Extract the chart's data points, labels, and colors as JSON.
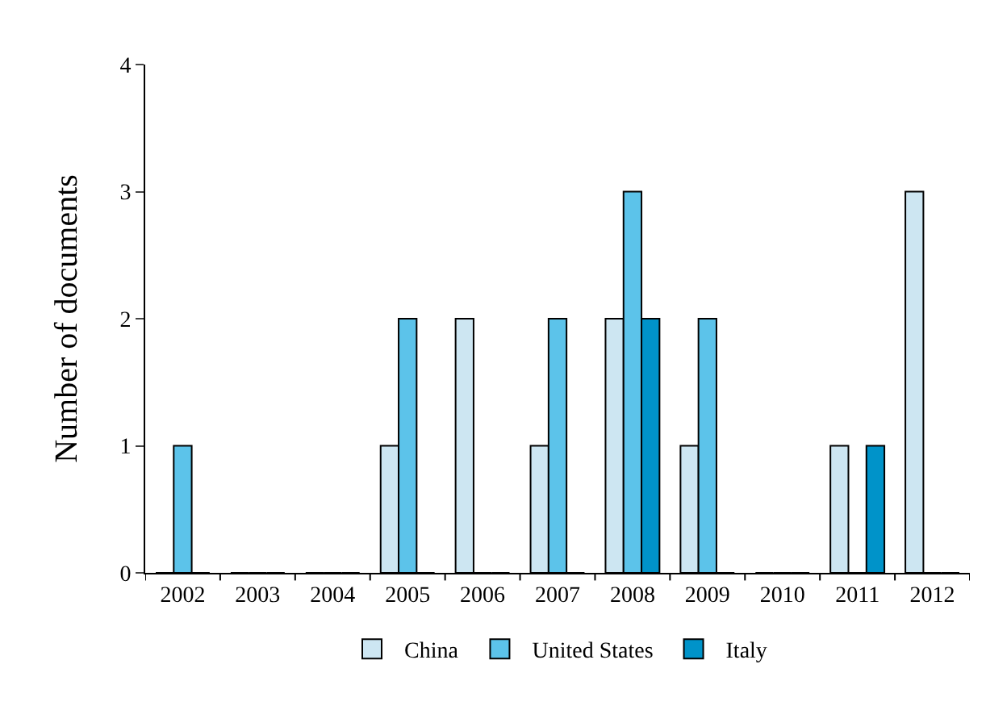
{
  "chart_data": {
    "type": "bar",
    "ylabel": "Number of documents",
    "categories": [
      "2002",
      "2003",
      "2004",
      "2005",
      "2006",
      "2007",
      "2008",
      "2009",
      "2010",
      "2011",
      "2012"
    ],
    "series": [
      {
        "name": "China",
        "color": "#cde6f2",
        "values": [
          0,
          0,
          0,
          1,
          2,
          1,
          2,
          1,
          0,
          1,
          3
        ]
      },
      {
        "name": "United States",
        "color": "#5cc3ea",
        "values": [
          1,
          0,
          0,
          2,
          0,
          2,
          3,
          2,
          0,
          0,
          0
        ]
      },
      {
        "name": "Italy",
        "color": "#0093c9",
        "values": [
          0,
          0,
          0,
          0,
          0,
          0,
          2,
          0,
          0,
          1,
          0
        ]
      }
    ],
    "ylim": [
      0,
      4
    ],
    "yticks": [
      0,
      1,
      2,
      3,
      4
    ],
    "grid": false,
    "legend": "bottom"
  }
}
